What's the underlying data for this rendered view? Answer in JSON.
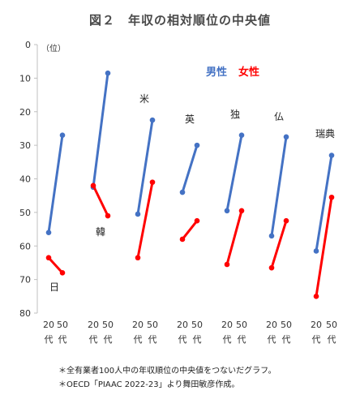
{
  "chart_data": {
    "type": "line",
    "title": "図２　年収の相対順位の中央値",
    "ylabel": "（位）",
    "ylim": [
      0,
      80
    ],
    "y_inverted": true,
    "yticks": [
      0,
      10,
      20,
      30,
      40,
      50,
      60,
      70,
      80
    ],
    "x_tick_labels": [
      "20 代",
      "50 代"
    ],
    "legend": [
      "男性",
      "女性"
    ],
    "colors": {
      "男性": "#4472C4",
      "女性": "#FF0000"
    },
    "groups": [
      {
        "label": "日",
        "男性": [
          56,
          27
        ],
        "女性": [
          63.5,
          68
        ]
      },
      {
        "label": "韓",
        "男性": [
          42.5,
          8.5
        ],
        "女性": [
          42,
          51
        ]
      },
      {
        "label": "米",
        "男性": [
          50.5,
          22.5
        ],
        "女性": [
          63.5,
          41
        ]
      },
      {
        "label": "英",
        "男性": [
          44,
          30
        ],
        "女性": [
          58,
          52.5
        ]
      },
      {
        "label": "独",
        "男性": [
          49.5,
          27
        ],
        "女性": [
          65.5,
          49.5
        ]
      },
      {
        "label": "仏",
        "男性": [
          57,
          27.5
        ],
        "女性": [
          66.5,
          52.5
        ]
      },
      {
        "label": "瑞典",
        "男性": [
          61.5,
          33
        ],
        "女性": [
          75,
          45.5
        ]
      }
    ]
  },
  "notes": [
    "＊全有業者100人中の年収順位の中央値をつないだグラフ。",
    "＊OECD「PIAAC 2022-23」より舞田敏彦作成。"
  ]
}
